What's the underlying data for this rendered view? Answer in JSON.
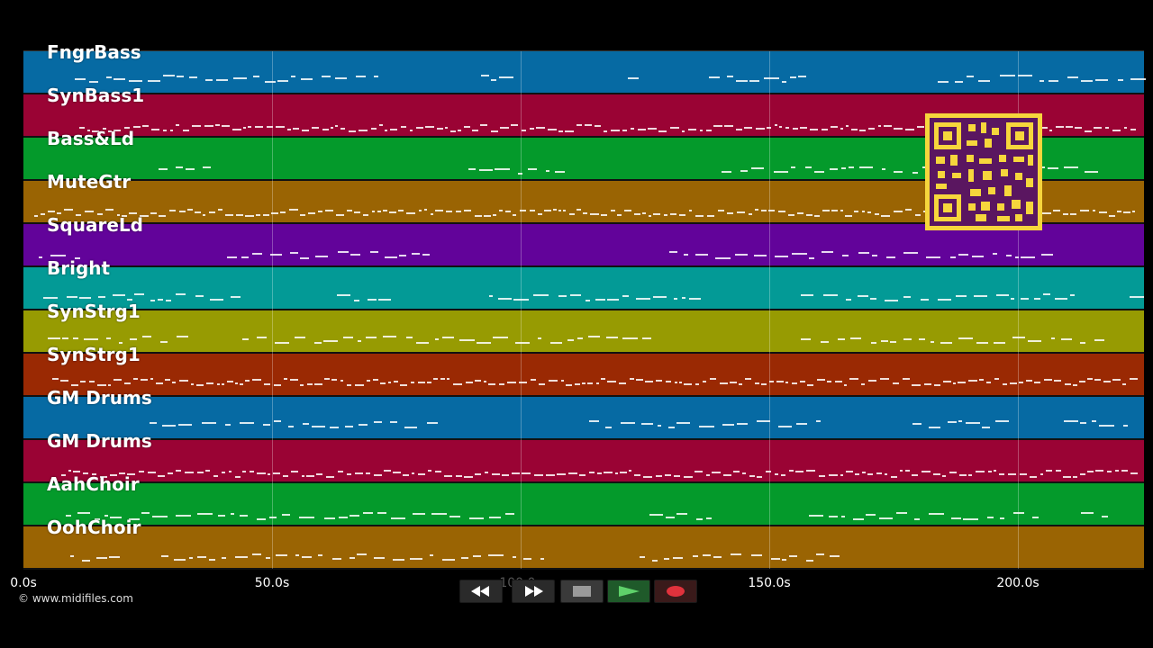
{
  "tracks": [
    {
      "name": "FngrBass",
      "color": "#066aa3"
    },
    {
      "name": "SynBass1",
      "color": "#9a0334"
    },
    {
      "name": "Bass&Ld",
      "color": "#049a2b"
    },
    {
      "name": "MuteGtr",
      "color": "#9a6403"
    },
    {
      "name": "SquareLd",
      "color": "#62039a"
    },
    {
      "name": "Bright",
      "color": "#039a96"
    },
    {
      "name": "SynStrg1",
      "color": "#979b02"
    },
    {
      "name": "SynStrg1",
      "color": "#9a2903"
    },
    {
      "name": "GM Drums",
      "color": "#066aa3"
    },
    {
      "name": "GM Drums",
      "color": "#9a0334"
    },
    {
      "name": "AahChoir",
      "color": "#049a2b"
    },
    {
      "name": "OohChoir",
      "color": "#9a6403"
    }
  ],
  "timeline": {
    "ticks": [
      "0.0s",
      "50.0s",
      "100.0s",
      "150.0s",
      "200.0s"
    ],
    "tick_values": [
      0,
      50,
      100,
      150,
      200
    ],
    "max_seconds": 225.5
  },
  "copyright": "© www.midifiles.com",
  "transport": {
    "rewind": "rewind-icon",
    "fast_forward": "fast-forward-icon",
    "stop": "stop-icon",
    "play": "play-icon",
    "record": "record-icon"
  },
  "overlay": {
    "qr": "qr-code"
  }
}
